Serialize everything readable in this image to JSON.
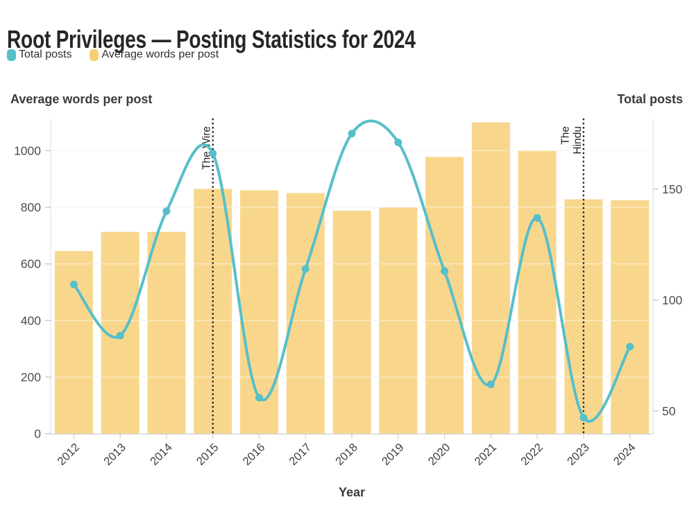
{
  "title": "Root Privileges — Posting Statistics for 2024",
  "legend": {
    "total_posts": "Total posts",
    "avg_words": "Average words per post"
  },
  "colors": {
    "line_teal": "#56BFC9",
    "legend_yellow": "#F6CE74",
    "bar_yellow": "#F8D78D",
    "grid": "#ECECEC",
    "grid_on_bars": "rgba(255,255,255,0.55)",
    "axis_line": "#E2E2E2",
    "bottom_axis": "#CFCFCF",
    "tick_dash": "#C7C7C7",
    "tick_text": "#4D4D4D",
    "annotation": "#222222"
  },
  "chart_data": {
    "type": "bar",
    "subtype": "combo-bar-line",
    "categories": [
      "2012",
      "2013",
      "2014",
      "2015",
      "2016",
      "2017",
      "2018",
      "2019",
      "2020",
      "2021",
      "2022",
      "2023",
      "2024"
    ],
    "series": [
      {
        "name": "Average words per post",
        "type": "bar",
        "axis": "left",
        "color": "#F8D78D",
        "values": [
          645,
          713,
          713,
          865,
          860,
          850,
          788,
          800,
          978,
          1100,
          1000,
          828,
          825
        ]
      },
      {
        "name": "Total posts",
        "type": "line",
        "axis": "right",
        "color": "#56BFC9",
        "values": [
          107,
          84,
          140,
          166,
          56,
          114,
          175,
          171,
          113,
          62,
          137,
          47,
          79
        ]
      }
    ],
    "left_axis": {
      "title": "Average words per post",
      "ticks": [
        0,
        200,
        400,
        600,
        800,
        1000
      ],
      "range": [
        0,
        1114
      ]
    },
    "right_axis": {
      "title": "Total posts",
      "ticks": [
        50,
        100,
        150
      ],
      "range": [
        39.8,
        181.8
      ]
    },
    "x_axis": {
      "title": "Year"
    },
    "annotations": [
      {
        "category": "2015",
        "lines": [
          "The Wire"
        ]
      },
      {
        "category": "2023",
        "lines": [
          "The",
          "Hindu"
        ]
      }
    ],
    "grid": true,
    "legend_position": "top-left"
  }
}
